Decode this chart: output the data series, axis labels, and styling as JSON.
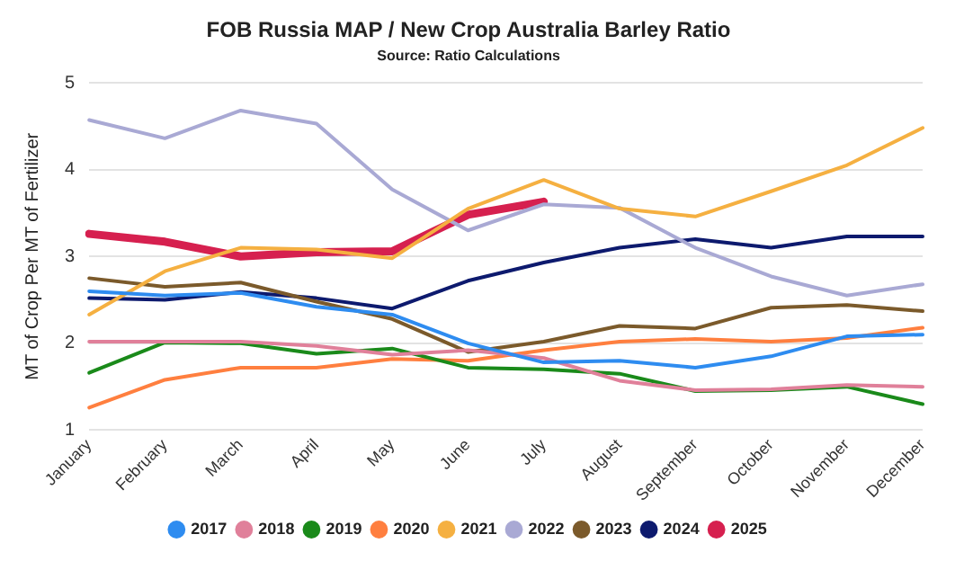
{
  "chart_data": {
    "type": "line",
    "title": "FOB Russia MAP / New Crop Australia Barley Ratio",
    "subtitle": "Source: Ratio Calculations",
    "ylabel": "MT of Crop Per MT of Fertilizer",
    "categories": [
      "January",
      "February",
      "March",
      "April",
      "May",
      "June",
      "July",
      "August",
      "September",
      "October",
      "November",
      "December"
    ],
    "ylim": [
      1,
      5
    ],
    "yticks": [
      1,
      2,
      3,
      4,
      5
    ],
    "grid": "y",
    "legend": "bottom",
    "marker": "none",
    "line_style": "solid",
    "series": [
      {
        "name": "2017",
        "color": "#2e8cf0",
        "values": [
          2.6,
          2.55,
          2.58,
          2.42,
          2.33,
          2.0,
          1.78,
          1.8,
          1.72,
          1.85,
          2.08,
          2.1
        ]
      },
      {
        "name": "2018",
        "color": "#e0809a",
        "values": [
          2.02,
          2.02,
          2.02,
          1.97,
          1.87,
          1.92,
          1.83,
          1.57,
          1.46,
          1.47,
          1.52,
          1.5
        ]
      },
      {
        "name": "2019",
        "color": "#1a8a1a",
        "values": [
          1.66,
          2.01,
          2.0,
          1.88,
          1.94,
          1.72,
          1.7,
          1.65,
          1.45,
          1.46,
          1.5,
          1.3
        ]
      },
      {
        "name": "2020",
        "color": "#ff7f3f",
        "values": [
          1.26,
          1.58,
          1.72,
          1.72,
          1.82,
          1.8,
          1.92,
          2.02,
          2.05,
          2.02,
          2.06,
          2.18
        ]
      },
      {
        "name": "2021",
        "color": "#f5b041",
        "values": [
          2.33,
          2.83,
          3.1,
          3.08,
          2.98,
          3.55,
          3.88,
          3.55,
          3.46,
          3.75,
          4.05,
          4.48
        ]
      },
      {
        "name": "2022",
        "color": "#a9a9d4",
        "values": [
          4.57,
          4.36,
          4.68,
          4.53,
          3.77,
          3.3,
          3.6,
          3.56,
          3.1,
          2.77,
          2.55,
          2.68
        ]
      },
      {
        "name": "2023",
        "color": "#7b5a2b",
        "values": [
          2.75,
          2.65,
          2.7,
          2.48,
          2.28,
          1.9,
          2.02,
          2.2,
          2.17,
          2.41,
          2.44,
          2.37
        ]
      },
      {
        "name": "2024",
        "color": "#0d1a6e",
        "values": [
          2.52,
          2.5,
          2.59,
          2.52,
          2.4,
          2.72,
          2.93,
          3.1,
          3.2,
          3.1,
          3.23,
          3.23
        ]
      },
      {
        "name": "2025",
        "color": "#d6204f",
        "values": [
          3.26,
          3.17,
          3.0,
          3.05,
          3.06,
          3.48,
          3.63,
          null,
          null,
          null,
          null,
          null
        ]
      }
    ]
  }
}
